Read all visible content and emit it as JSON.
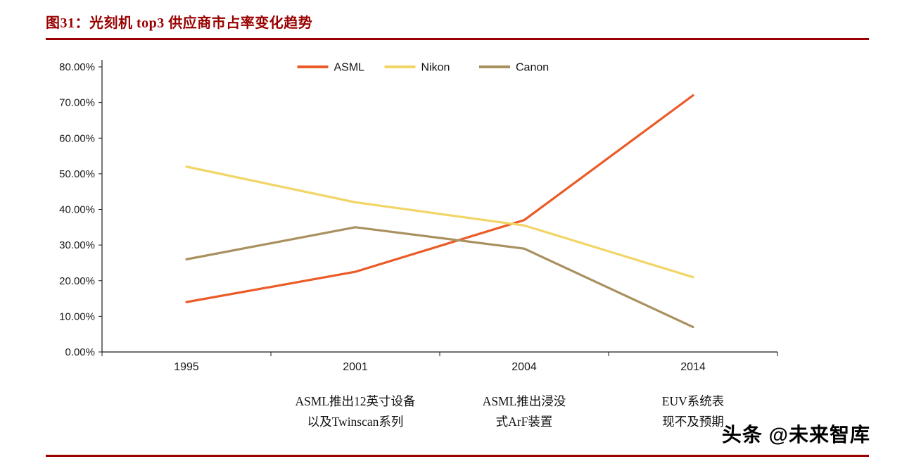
{
  "page": {
    "title": "图31：光刻机 top3 供应商市占率变化趋势",
    "watermark": "头条 @未来智库",
    "accent_color": "#990000"
  },
  "chart_data": {
    "type": "line",
    "title": "光刻机 top3 供应商市占率变化趋势",
    "categories": [
      "1995",
      "2001",
      "2004",
      "2014"
    ],
    "series": [
      {
        "name": "ASML",
        "color": "#eb5b27",
        "values": [
          14,
          22.5,
          37,
          72
        ]
      },
      {
        "name": "Nikon",
        "color": "#f1d567",
        "values": [
          52,
          42,
          35.5,
          21
        ]
      },
      {
        "name": "Canon",
        "color": "#a9905f",
        "values": [
          26,
          35,
          29,
          7
        ]
      }
    ],
    "ylim": [
      0,
      80
    ],
    "ytick_values": [
      0,
      10,
      20,
      30,
      40,
      50,
      60,
      70,
      80
    ],
    "yticks": [
      "0.00%",
      "10.00%",
      "20.00%",
      "30.00%",
      "40.00%",
      "50.00%",
      "60.00%",
      "70.00%",
      "80.00%"
    ],
    "xlabel": "",
    "ylabel": "",
    "grid": false,
    "legend_position": "top-center",
    "annotations": [
      {
        "category": "2001",
        "lines": [
          "ASML推出12英寸设备",
          "以及Twinscan系列"
        ]
      },
      {
        "category": "2004",
        "lines": [
          "ASML推出浸没",
          "式ArF装置"
        ]
      },
      {
        "category": "2014",
        "lines": [
          "EUV系统表",
          "现不及预期"
        ]
      }
    ]
  }
}
